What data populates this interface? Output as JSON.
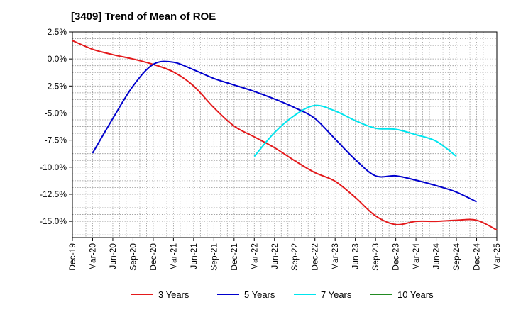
{
  "chart_data": {
    "type": "line",
    "title": "[3409]  Trend of Mean of ROE",
    "xlabel": "",
    "ylabel": "",
    "x_tick_labels": [
      "Dec-19",
      "Mar-20",
      "Jun-20",
      "Sep-20",
      "Dec-20",
      "Mar-21",
      "Jun-21",
      "Sep-21",
      "Dec-21",
      "Mar-22",
      "Jun-22",
      "Sep-22",
      "Dec-22",
      "Mar-23",
      "Jun-23",
      "Sep-23",
      "Dec-23",
      "Mar-24",
      "Jun-24",
      "Sep-24",
      "Dec-24",
      "Mar-25"
    ],
    "y_tick_values": [
      2.5,
      0,
      -2.5,
      -5,
      -7.5,
      -10,
      -12.5,
      -15
    ],
    "y_tick_labels": [
      "2.5%",
      "0.0%",
      "-2.5%",
      "-5.0%",
      "-7.5%",
      "-10.0%",
      "-12.5%",
      "-15.0%"
    ],
    "ylim": [
      -16.5,
      2.5
    ],
    "grid": true,
    "legend_position": "bottom",
    "series": [
      {
        "name": "3 Years",
        "color": "#e41a1c",
        "start_index": 0,
        "values": [
          1.7,
          0.9,
          0.4,
          0.0,
          -0.5,
          -1.2,
          -2.5,
          -4.5,
          -6.2,
          -7.2,
          -8.2,
          -9.4,
          -10.5,
          -11.3,
          -12.8,
          -14.5,
          -15.3,
          -15.0,
          -15.0,
          -14.9,
          -14.9,
          -15.8
        ]
      },
      {
        "name": "5 Years",
        "color": "#0000cd",
        "start_index": 1,
        "values": [
          -8.7,
          -5.5,
          -2.5,
          -0.5,
          -0.3,
          -1.0,
          -1.8,
          -2.4,
          -3.0,
          -3.7,
          -4.5,
          -5.5,
          -7.4,
          -9.3,
          -10.8,
          -10.8,
          -11.2,
          -11.7,
          -12.3,
          -13.2
        ]
      },
      {
        "name": "7 Years",
        "color": "#00e5ee",
        "start_index": 9,
        "values": [
          -9.0,
          -6.8,
          -5.2,
          -4.3,
          -4.8,
          -5.7,
          -6.4,
          -6.5,
          -7.0,
          -7.6,
          -9.0
        ]
      },
      {
        "name": "10 Years",
        "color": "#228b22",
        "start_index": 0,
        "values": []
      }
    ]
  }
}
